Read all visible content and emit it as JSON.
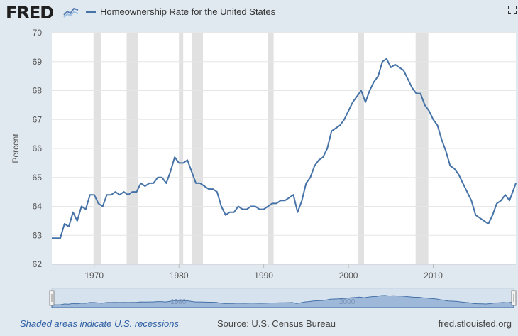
{
  "header": {
    "logo_text": "FRED",
    "logo_icon": "chart-line-icon",
    "fullscreen_icon": "fullscreen-icon"
  },
  "chart_data": {
    "type": "line",
    "title": "",
    "xlabel": "",
    "ylabel": "Percent",
    "xlim": [
      1965.0,
      2019.75
    ],
    "ylim": [
      62,
      70
    ],
    "yticks": [
      62,
      63,
      64,
      65,
      66,
      67,
      68,
      69,
      70
    ],
    "xticks": [
      "1970",
      "1980",
      "1990",
      "2000",
      "2010"
    ],
    "grid": true,
    "legend_position": "top-left",
    "colors": {
      "line": "#4572a7",
      "recession": "#e1e1e1",
      "navigator": "#6f96c9"
    },
    "recessions": [
      [
        1969.92,
        1970.83
      ],
      [
        1973.83,
        1975.17
      ],
      [
        1980.0,
        1980.5
      ],
      [
        1981.5,
        1982.83
      ],
      [
        1990.5,
        1991.17
      ],
      [
        2001.17,
        2001.83
      ],
      [
        2007.92,
        2009.42
      ]
    ],
    "series": [
      {
        "name": "Homeownership Rate for the United States",
        "x": [
          1965.0,
          1966.0,
          1966.5,
          1967.0,
          1967.5,
          1968.0,
          1968.5,
          1969.0,
          1969.5,
          1970.0,
          1970.5,
          1971.0,
          1971.5,
          1972.0,
          1972.5,
          1973.0,
          1973.5,
          1974.0,
          1974.5,
          1975.0,
          1975.5,
          1976.0,
          1976.5,
          1977.0,
          1977.5,
          1978.0,
          1978.5,
          1979.0,
          1979.5,
          1980.0,
          1980.5,
          1981.0,
          1981.5,
          1982.0,
          1982.5,
          1983.0,
          1983.5,
          1984.0,
          1984.5,
          1985.0,
          1985.5,
          1986.0,
          1986.5,
          1987.0,
          1987.5,
          1988.0,
          1988.5,
          1989.0,
          1989.5,
          1990.0,
          1990.5,
          1991.0,
          1991.5,
          1992.0,
          1992.5,
          1993.0,
          1993.5,
          1994.0,
          1994.5,
          1995.0,
          1995.5,
          1996.0,
          1996.5,
          1997.0,
          1997.5,
          1998.0,
          1998.5,
          1999.0,
          1999.5,
          2000.0,
          2000.5,
          2001.0,
          2001.5,
          2002.0,
          2002.5,
          2003.0,
          2003.5,
          2004.0,
          2004.5,
          2005.0,
          2005.5,
          2006.0,
          2006.5,
          2007.0,
          2007.5,
          2008.0,
          2008.5,
          2009.0,
          2009.5,
          2010.0,
          2010.5,
          2011.0,
          2011.5,
          2012.0,
          2012.5,
          2013.0,
          2013.5,
          2014.0,
          2014.5,
          2015.0,
          2015.5,
          2016.0,
          2016.5,
          2017.0,
          2017.5,
          2018.0,
          2018.5,
          2019.0,
          2019.5,
          2019.75
        ],
        "values": [
          62.9,
          62.9,
          63.4,
          63.3,
          63.8,
          63.5,
          64.0,
          63.9,
          64.4,
          64.4,
          64.1,
          64.0,
          64.4,
          64.4,
          64.5,
          64.4,
          64.5,
          64.4,
          64.5,
          64.5,
          64.8,
          64.7,
          64.8,
          64.8,
          65.0,
          65.0,
          64.8,
          65.2,
          65.7,
          65.5,
          65.5,
          65.6,
          65.2,
          64.8,
          64.8,
          64.7,
          64.6,
          64.6,
          64.5,
          64.0,
          63.7,
          63.8,
          63.8,
          64.0,
          63.9,
          63.9,
          64.0,
          64.0,
          63.9,
          63.9,
          64.0,
          64.1,
          64.1,
          64.2,
          64.2,
          64.3,
          64.4,
          63.8,
          64.2,
          64.8,
          65.0,
          65.4,
          65.6,
          65.7,
          66.0,
          66.6,
          66.7,
          66.8,
          67.0,
          67.3,
          67.6,
          67.8,
          68.0,
          67.6,
          68.0,
          68.3,
          68.5,
          69.0,
          69.1,
          68.8,
          68.9,
          68.8,
          68.7,
          68.4,
          68.1,
          67.9,
          67.9,
          67.5,
          67.3,
          67.0,
          66.8,
          66.3,
          65.9,
          65.4,
          65.3,
          65.1,
          64.8,
          64.5,
          64.2,
          63.7,
          63.6,
          63.5,
          63.4,
          63.7,
          64.1,
          64.2,
          64.4,
          64.2,
          64.6,
          64.8
        ]
      }
    ]
  },
  "navigator": {
    "left_label": "1980",
    "right_label": "2000"
  },
  "footer": {
    "recession_note": "Shaded areas indicate U.S. recessions",
    "source": "Source: U.S. Census Bureau",
    "url": "fred.stlouisfed.org"
  }
}
